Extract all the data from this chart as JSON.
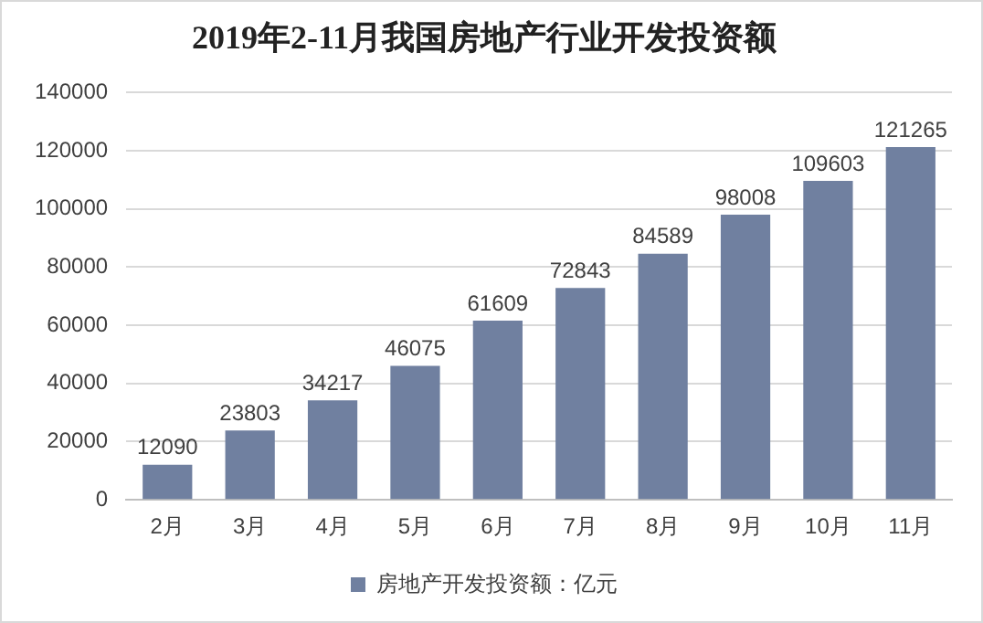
{
  "chart_data": {
    "type": "bar",
    "title": "2019年2-11月我国房地产行业开发投资额",
    "categories": [
      "2月",
      "3月",
      "4月",
      "5月",
      "6月",
      "7月",
      "8月",
      "9月",
      "10月",
      "11月"
    ],
    "series": [
      {
        "name": "房地产开发投资额：亿元",
        "color": "#7080a0",
        "values": [
          12090,
          23803,
          34217,
          46075,
          61609,
          72843,
          84589,
          98008,
          109603,
          121265
        ]
      }
    ],
    "ylim": [
      0,
      140000
    ],
    "yticks": [
      0,
      20000,
      40000,
      60000,
      80000,
      100000,
      120000,
      140000
    ],
    "grid": "y",
    "legend": "bottom",
    "data_labels": true
  }
}
